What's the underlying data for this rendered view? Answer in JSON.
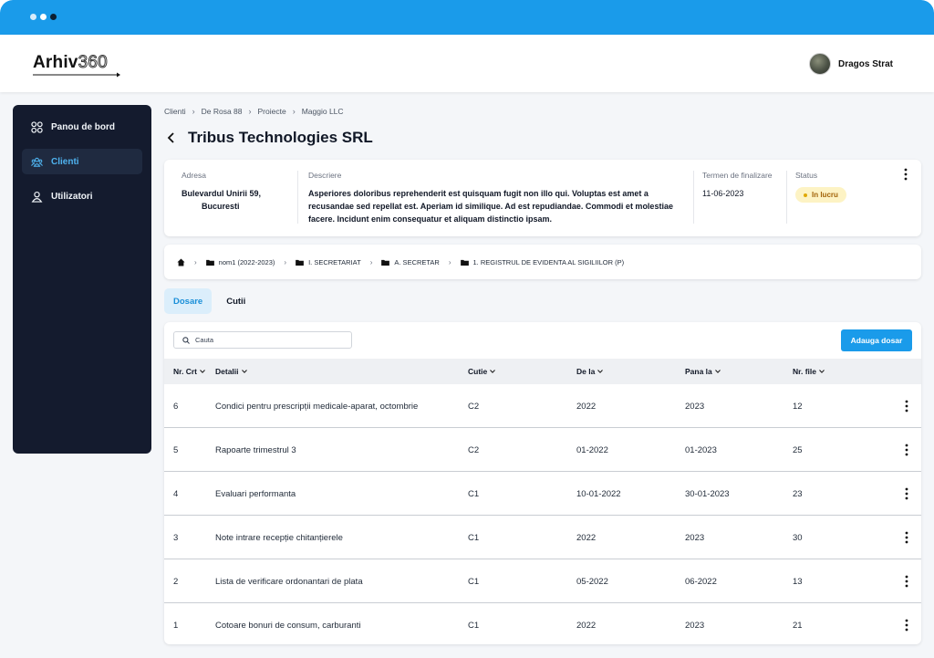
{
  "app": {
    "logo_text_1": "Arhiv",
    "logo_text_2": "360",
    "user_name": "Dragos Strat"
  },
  "colors": {
    "accent": "#1a9bea",
    "sidebar_bg": "#141b2e",
    "active_text": "#4fb3ef",
    "status_bg": "#fdf3c4"
  },
  "sidebar": {
    "items": [
      {
        "label": "Panou de bord",
        "icon": "dashboard-icon",
        "active": false
      },
      {
        "label": "Clienti",
        "icon": "users-group-icon",
        "active": true
      },
      {
        "label": "Utilizatori",
        "icon": "user-icon",
        "active": false
      }
    ]
  },
  "breadcrumb": [
    "Clienti",
    "De Rosa 88",
    "Proiecte",
    "Maggio LLC"
  ],
  "page": {
    "title": "Tribus Technologies SRL"
  },
  "info": {
    "address_label": "Adresa",
    "address_line1": "Bulevardul Unirii 59,",
    "address_line2": "Bucuresti",
    "description_label": "Descriere",
    "description_lines": [
      "Asperiores doloribus reprehenderit est quisquam fugit non illo qui. Voluptas est amet a",
      "recusandae sed repellat est. Aperiam id similique. Ad est repudiandae. Commodi et molestiae",
      "facere. Incidunt enim consequatur et aliquam distinctio ipsam."
    ],
    "deadline_label": "Termen de finalizare",
    "deadline_value": "11-06-2023",
    "status_label": "Status",
    "status_value": "In lucru"
  },
  "path": [
    "nom1 (2022-2023)",
    "I. SECRETARIAT",
    "A. SECRETAR",
    "1. REGISTRUL DE EVIDENTA AL SIGILIILOR (P)"
  ],
  "tabs": [
    {
      "label": "Dosare",
      "active": true
    },
    {
      "label": "Cutii",
      "active": false
    }
  ],
  "table": {
    "search_placeholder": "Cauta",
    "add_label": "Adauga dosar",
    "columns": [
      "Nr. Crt",
      "Detalii",
      "Cutie",
      "De la",
      "Pana la",
      "Nr. file"
    ],
    "rows": [
      {
        "nr": "6",
        "detalii": "Condici pentru prescripții medicale-aparat, octombrie",
        "cutie": "C2",
        "de_la": "2022",
        "pana_la": "2023",
        "file": "12"
      },
      {
        "nr": "5",
        "detalii": "Rapoarte trimestrul 3",
        "cutie": "C2",
        "de_la": "01-2022",
        "pana_la": "01-2023",
        "file": "25"
      },
      {
        "nr": "4",
        "detalii": "Evaluari performanta",
        "cutie": "C1",
        "de_la": "10-01-2022",
        "pana_la": "30-01-2023",
        "file": "23"
      },
      {
        "nr": "3",
        "detalii": "Note intrare recepție chitanțierele",
        "cutie": "C1",
        "de_la": "2022",
        "pana_la": "2023",
        "file": "30"
      },
      {
        "nr": "2",
        "detalii": "Lista de verificare ordonantari de plata",
        "cutie": "C1",
        "de_la": "05-2022",
        "pana_la": "06-2022",
        "file": "13"
      },
      {
        "nr": "1",
        "detalii": "Cotoare bonuri de consum, carburanti",
        "cutie": "C1",
        "de_la": "2022",
        "pana_la": "2023",
        "file": "21"
      }
    ]
  }
}
